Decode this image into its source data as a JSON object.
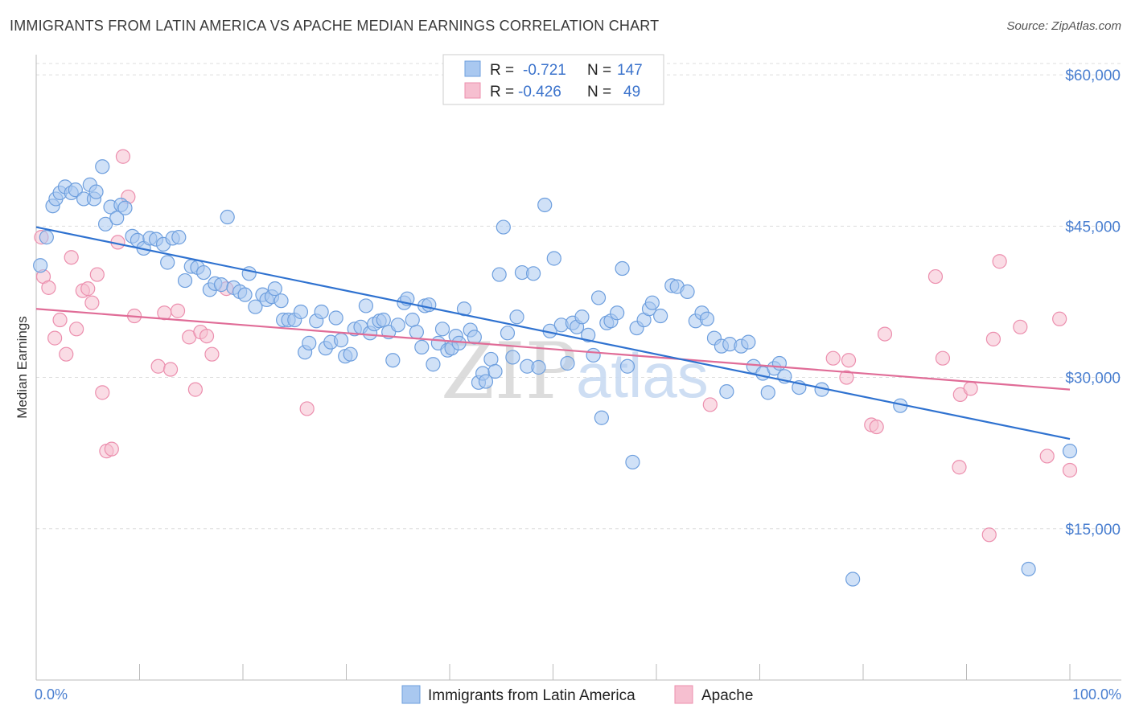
{
  "header": {
    "title": "IMMIGRANTS FROM LATIN AMERICA VS APACHE MEDIAN EARNINGS CORRELATION CHART",
    "source": "Source: ZipAtlas.com"
  },
  "watermark": {
    "zip": "ZIP",
    "atlas": "atlas"
  },
  "colors": {
    "blue_fill": "#a9c8f0",
    "blue_stroke": "#6e9fde",
    "blue_line": "#2f72d0",
    "pink_fill": "#f6bfd0",
    "pink_stroke": "#ec8fae",
    "pink_line": "#e06c97",
    "grid": "#dddddd",
    "axis_text": "#4a7fd0"
  },
  "legend": {
    "r_label": "R =",
    "n_label": "N =",
    "rows": [
      {
        "r": "-0.721",
        "n": "147"
      },
      {
        "r": "-0.426",
        "n": "49"
      }
    ]
  },
  "chart_data": {
    "type": "scatter",
    "title": "IMMIGRANTS FROM LATIN AMERICA VS APACHE MEDIAN EARNINGS CORRELATION CHART",
    "xlabel": "",
    "ylabel": "Median Earnings",
    "xlim": [
      0,
      100
    ],
    "ylim": [
      0,
      62000
    ],
    "x_tick_labels": [
      "0.0%",
      "100.0%"
    ],
    "y_ticks": [
      {
        "value": 15000,
        "label": "$15,000"
      },
      {
        "value": 30000,
        "label": "$30,000"
      },
      {
        "value": 45000,
        "label": "$45,000"
      },
      {
        "value": 60000,
        "label": "$60,000"
      }
    ],
    "grid": true,
    "legend_position": "top-center",
    "series": [
      {
        "name": "Immigrants from Latin America",
        "r": -0.721,
        "n": 147,
        "trend": {
          "x": [
            0,
            100
          ],
          "y": [
            44900,
            23900
          ]
        },
        "points": [
          [
            0.4,
            41100
          ],
          [
            1.0,
            43900
          ],
          [
            1.6,
            47000
          ],
          [
            1.9,
            47700
          ],
          [
            2.3,
            48300
          ],
          [
            2.8,
            48900
          ],
          [
            3.4,
            48300
          ],
          [
            3.8,
            48600
          ],
          [
            4.6,
            47700
          ],
          [
            5.2,
            49100
          ],
          [
            5.6,
            47700
          ],
          [
            5.8,
            48400
          ],
          [
            6.4,
            50900
          ],
          [
            6.7,
            45200
          ],
          [
            7.2,
            46900
          ],
          [
            7.8,
            45800
          ],
          [
            8.2,
            47100
          ],
          [
            8.6,
            46800
          ],
          [
            9.3,
            44000
          ],
          [
            9.8,
            43600
          ],
          [
            10.4,
            42800
          ],
          [
            11.0,
            43800
          ],
          [
            11.6,
            43700
          ],
          [
            12.3,
            43200
          ],
          [
            12.7,
            41400
          ],
          [
            13.2,
            43800
          ],
          [
            13.8,
            43900
          ],
          [
            14.4,
            39600
          ],
          [
            15.0,
            41000
          ],
          [
            15.6,
            40900
          ],
          [
            16.2,
            40400
          ],
          [
            16.8,
            38700
          ],
          [
            17.3,
            39300
          ],
          [
            17.9,
            39200
          ],
          [
            18.5,
            45900
          ],
          [
            19.1,
            38900
          ],
          [
            19.7,
            38500
          ],
          [
            20.2,
            38200
          ],
          [
            20.6,
            40300
          ],
          [
            21.2,
            37000
          ],
          [
            21.9,
            38200
          ],
          [
            22.3,
            37700
          ],
          [
            22.8,
            38000
          ],
          [
            23.1,
            38800
          ],
          [
            23.7,
            37600
          ],
          [
            23.9,
            35700
          ],
          [
            24.4,
            35700
          ],
          [
            25.0,
            35700
          ],
          [
            25.6,
            36500
          ],
          [
            26.0,
            32500
          ],
          [
            26.4,
            33400
          ],
          [
            27.1,
            35600
          ],
          [
            27.6,
            36500
          ],
          [
            28.0,
            32900
          ],
          [
            28.5,
            33500
          ],
          [
            29.0,
            35900
          ],
          [
            29.5,
            33700
          ],
          [
            29.9,
            32100
          ],
          [
            30.4,
            32300
          ],
          [
            30.8,
            34800
          ],
          [
            31.4,
            35000
          ],
          [
            31.9,
            37100
          ],
          [
            32.3,
            34400
          ],
          [
            32.7,
            35300
          ],
          [
            33.2,
            35600
          ],
          [
            33.6,
            35700
          ],
          [
            34.1,
            34500
          ],
          [
            34.5,
            31700
          ],
          [
            35.0,
            35200
          ],
          [
            35.6,
            37400
          ],
          [
            35.9,
            37800
          ],
          [
            36.4,
            35700
          ],
          [
            36.8,
            34500
          ],
          [
            37.3,
            33000
          ],
          [
            37.6,
            37100
          ],
          [
            38.0,
            37200
          ],
          [
            38.4,
            31300
          ],
          [
            38.9,
            33400
          ],
          [
            39.3,
            34800
          ],
          [
            39.8,
            32700
          ],
          [
            40.2,
            32900
          ],
          [
            40.6,
            34100
          ],
          [
            40.9,
            33400
          ],
          [
            41.4,
            36800
          ],
          [
            42.0,
            34700
          ],
          [
            42.4,
            34000
          ],
          [
            42.8,
            29500
          ],
          [
            43.2,
            30400
          ],
          [
            43.5,
            29600
          ],
          [
            44.0,
            31800
          ],
          [
            44.4,
            30600
          ],
          [
            44.8,
            40200
          ],
          [
            45.2,
            44900
          ],
          [
            45.6,
            34400
          ],
          [
            46.1,
            32000
          ],
          [
            46.5,
            36000
          ],
          [
            47.0,
            40400
          ],
          [
            47.5,
            31100
          ],
          [
            48.1,
            40300
          ],
          [
            48.6,
            31000
          ],
          [
            49.2,
            47100
          ],
          [
            49.7,
            34600
          ],
          [
            50.1,
            41800
          ],
          [
            50.8,
            35200
          ],
          [
            51.4,
            31400
          ],
          [
            51.9,
            35400
          ],
          [
            52.3,
            35000
          ],
          [
            52.8,
            36000
          ],
          [
            53.4,
            34200
          ],
          [
            53.9,
            32200
          ],
          [
            54.4,
            37900
          ],
          [
            54.7,
            26000
          ],
          [
            55.2,
            35400
          ],
          [
            55.6,
            35600
          ],
          [
            56.2,
            36400
          ],
          [
            56.7,
            40800
          ],
          [
            57.2,
            31100
          ],
          [
            57.7,
            21600
          ],
          [
            58.1,
            34900
          ],
          [
            58.8,
            35700
          ],
          [
            59.3,
            36800
          ],
          [
            59.6,
            37400
          ],
          [
            60.4,
            36100
          ],
          [
            61.5,
            39100
          ],
          [
            62.0,
            39000
          ],
          [
            63.0,
            38500
          ],
          [
            63.8,
            35600
          ],
          [
            64.4,
            36400
          ],
          [
            64.9,
            35800
          ],
          [
            65.6,
            33900
          ],
          [
            66.3,
            33100
          ],
          [
            66.8,
            28600
          ],
          [
            67.1,
            33300
          ],
          [
            68.2,
            33100
          ],
          [
            68.9,
            33500
          ],
          [
            69.4,
            31100
          ],
          [
            70.3,
            30400
          ],
          [
            70.8,
            28500
          ],
          [
            71.4,
            30900
          ],
          [
            71.9,
            31400
          ],
          [
            72.4,
            30100
          ],
          [
            73.8,
            29000
          ],
          [
            76.0,
            28800
          ],
          [
            79.0,
            10000
          ],
          [
            83.6,
            27200
          ],
          [
            96.0,
            11000
          ],
          [
            100.0,
            22700
          ]
        ]
      },
      {
        "name": "Apache",
        "r": -0.426,
        "n": 49,
        "trend": {
          "x": [
            0,
            100
          ],
          "y": [
            36800,
            28800
          ]
        },
        "points": [
          [
            0.5,
            43900
          ],
          [
            0.7,
            40000
          ],
          [
            1.2,
            38900
          ],
          [
            1.8,
            33900
          ],
          [
            2.3,
            35700
          ],
          [
            2.9,
            32300
          ],
          [
            3.4,
            41900
          ],
          [
            3.9,
            34800
          ],
          [
            4.5,
            38600
          ],
          [
            5.0,
            38800
          ],
          [
            5.4,
            37400
          ],
          [
            5.9,
            40200
          ],
          [
            6.4,
            28500
          ],
          [
            6.8,
            22700
          ],
          [
            7.3,
            22900
          ],
          [
            7.9,
            43400
          ],
          [
            8.4,
            51900
          ],
          [
            8.9,
            47900
          ],
          [
            9.5,
            36100
          ],
          [
            11.8,
            31100
          ],
          [
            12.4,
            36400
          ],
          [
            13.0,
            30800
          ],
          [
            13.7,
            36600
          ],
          [
            14.8,
            34000
          ],
          [
            15.4,
            28800
          ],
          [
            15.9,
            34500
          ],
          [
            16.5,
            34100
          ],
          [
            17.0,
            32300
          ],
          [
            18.4,
            38800
          ],
          [
            26.2,
            26900
          ],
          [
            65.2,
            27300
          ],
          [
            77.1,
            31900
          ],
          [
            78.4,
            30000
          ],
          [
            78.6,
            31700
          ],
          [
            80.8,
            25300
          ],
          [
            81.3,
            25100
          ],
          [
            82.1,
            34300
          ],
          [
            87.0,
            40000
          ],
          [
            87.7,
            31900
          ],
          [
            89.3,
            21100
          ],
          [
            89.4,
            28300
          ],
          [
            90.4,
            28900
          ],
          [
            92.2,
            14400
          ],
          [
            92.6,
            33800
          ],
          [
            93.2,
            41500
          ],
          [
            95.2,
            35000
          ],
          [
            97.8,
            22200
          ],
          [
            99.0,
            35800
          ],
          [
            100.0,
            20800
          ]
        ]
      }
    ]
  }
}
